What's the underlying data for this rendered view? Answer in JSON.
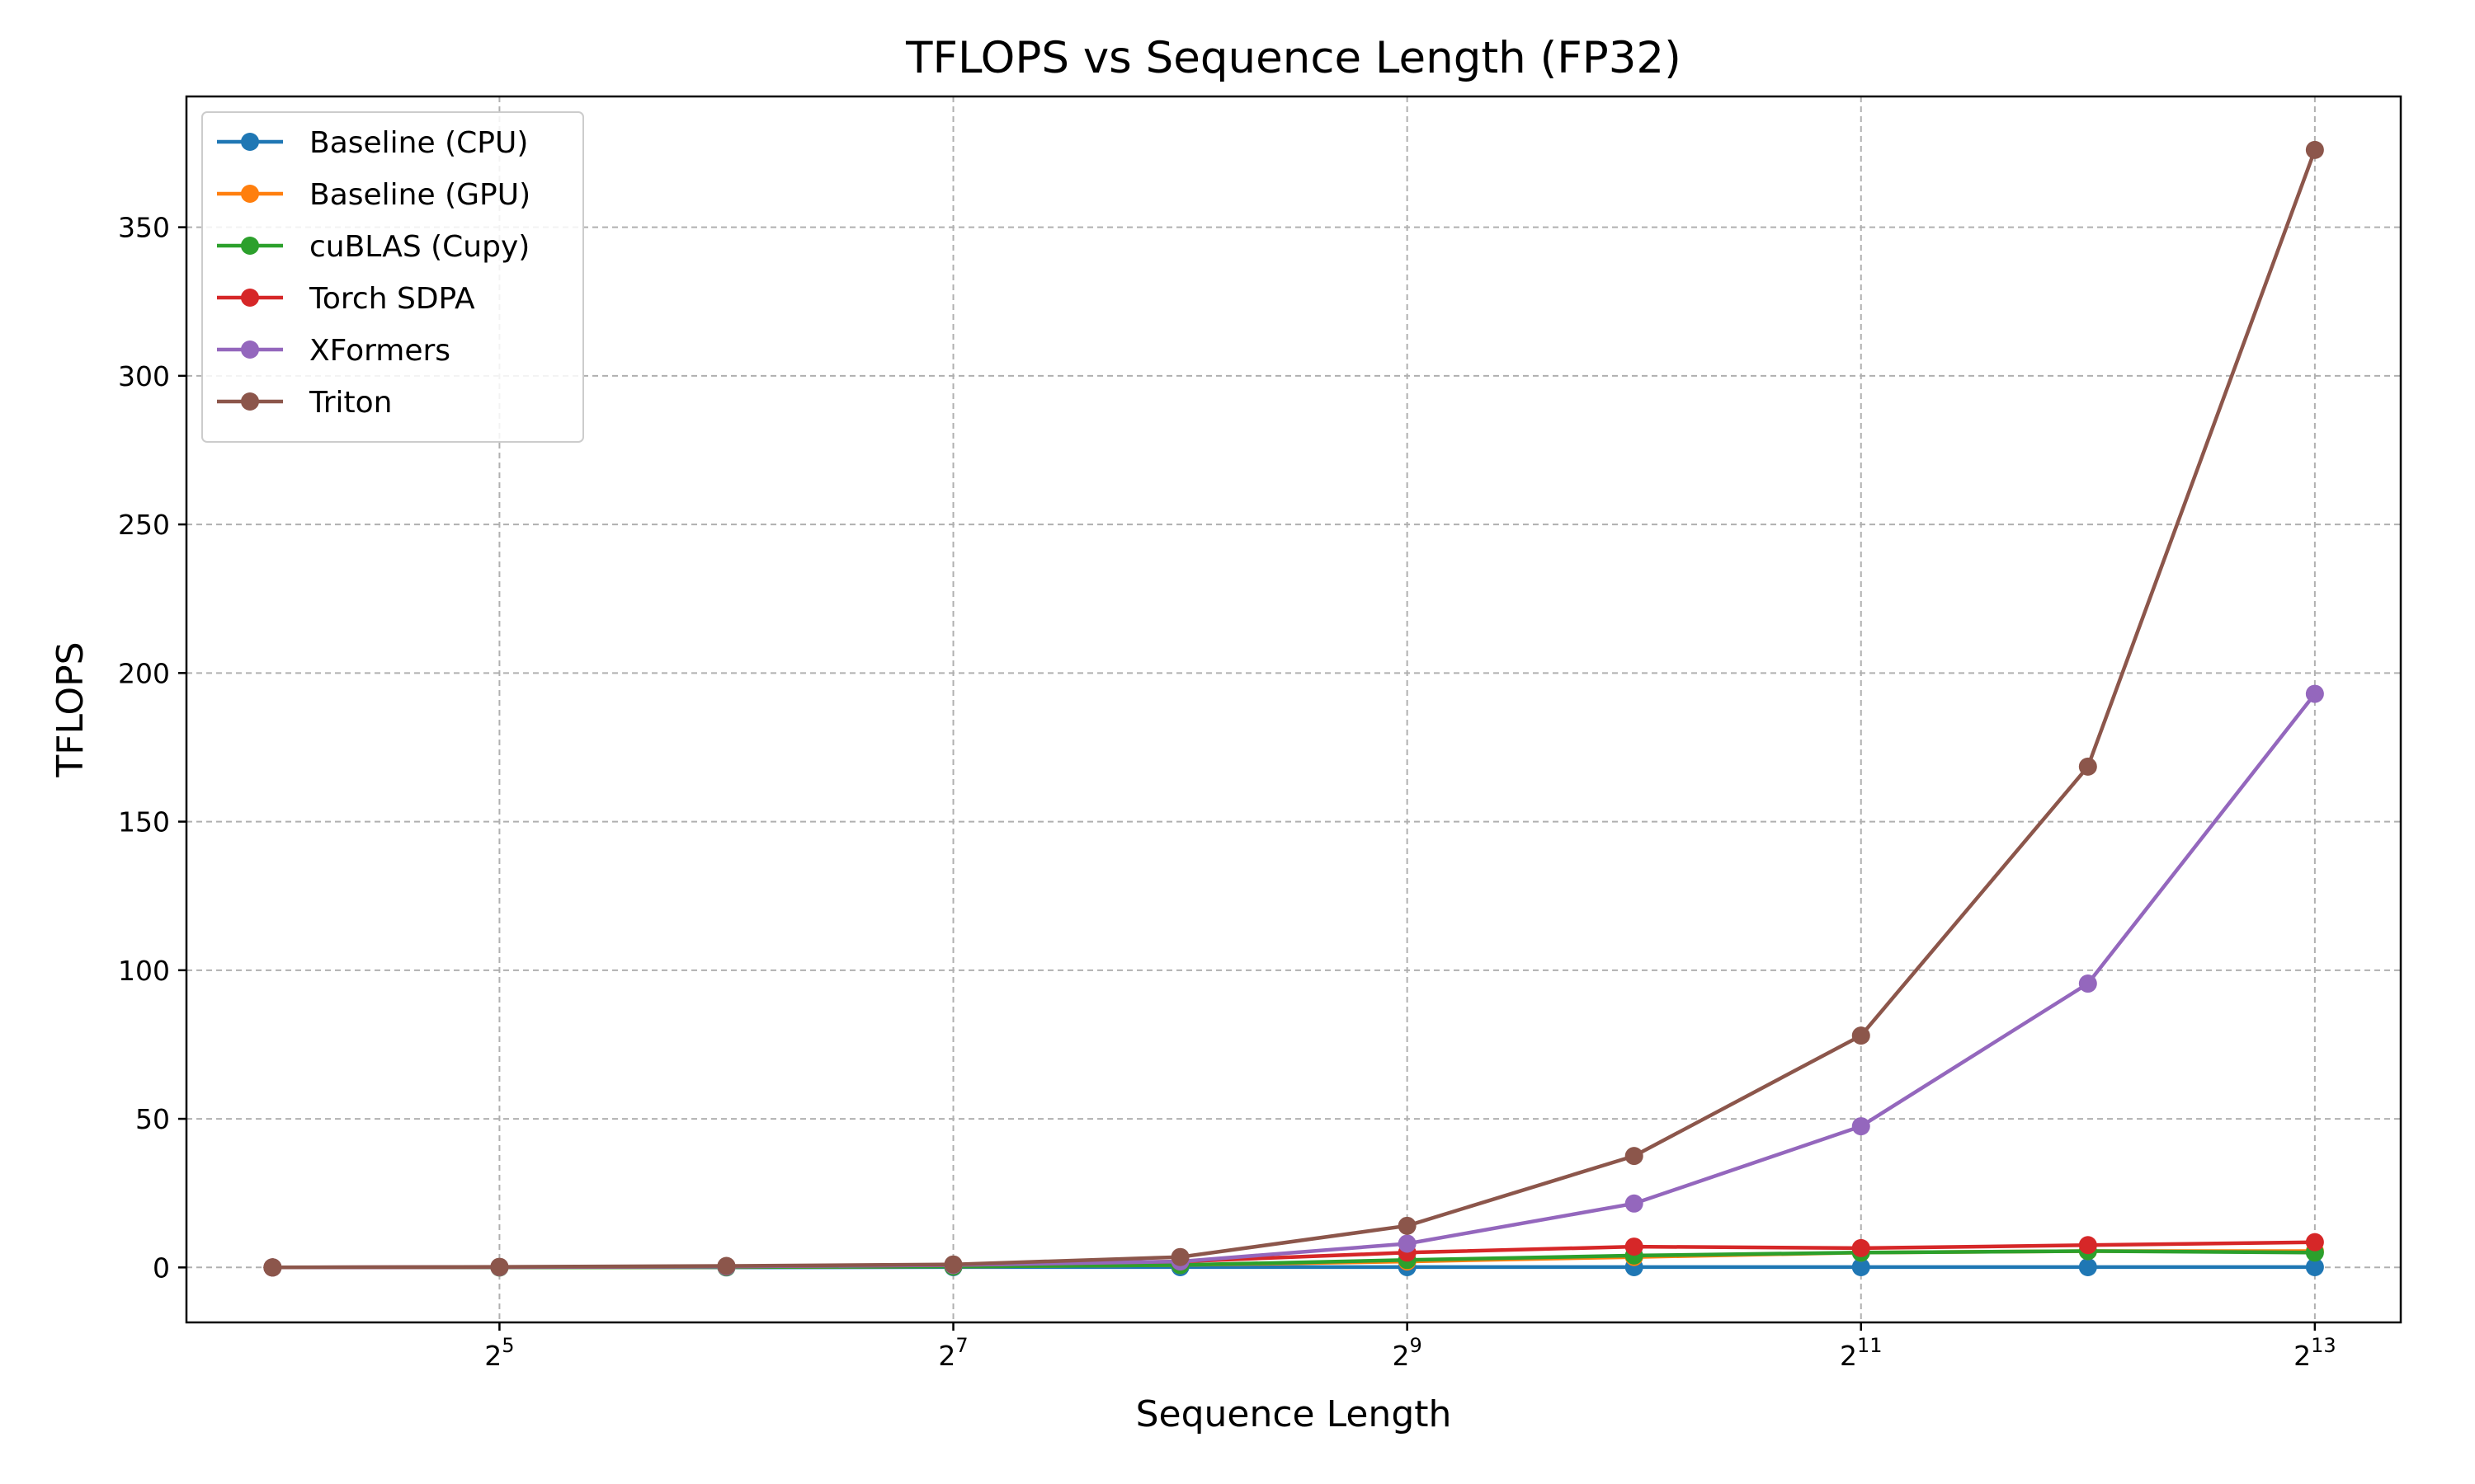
{
  "chart_data": {
    "type": "line",
    "title": "TFLOPS vs Sequence Length (FP32)",
    "xlabel": "Sequence Length",
    "ylabel": "TFLOPS",
    "x_scale": "log2",
    "x": [
      16,
      32,
      64,
      128,
      256,
      512,
      1024,
      2048,
      4096,
      8192
    ],
    "x_ticks": [
      {
        "value": 32,
        "base": "2",
        "exp": "5"
      },
      {
        "value": 128,
        "base": "2",
        "exp": "7"
      },
      {
        "value": 512,
        "base": "2",
        "exp": "9"
      },
      {
        "value": 2048,
        "base": "2",
        "exp": "11"
      },
      {
        "value": 8192,
        "base": "2",
        "exp": "13"
      }
    ],
    "xlim": [
      12.3,
      10650
    ],
    "ylim": [
      -18.5,
      394
    ],
    "y_ticks": [
      0,
      50,
      100,
      150,
      200,
      250,
      300,
      350
    ],
    "grid": true,
    "legend_position": "upper-left",
    "series": [
      {
        "name": "Baseline (CPU)",
        "color": "#1f77b4",
        "values": [
          0.0,
          0.0,
          0.0,
          0.1,
          0.1,
          0.1,
          0.1,
          0.1,
          0.1,
          0.1
        ]
      },
      {
        "name": "Baseline (GPU)",
        "color": "#ff7f0e",
        "values": [
          0.0,
          0.0,
          0.1,
          0.3,
          0.8,
          2.0,
          3.5,
          5.0,
          5.5,
          5.5
        ]
      },
      {
        "name": "cuBLAS (Cupy)",
        "color": "#2ca02c",
        "values": [
          0.0,
          0.0,
          0.1,
          0.3,
          0.8,
          2.5,
          4.0,
          5.0,
          5.5,
          5.0
        ]
      },
      {
        "name": "Torch SDPA",
        "color": "#d62728",
        "values": [
          0.0,
          0.1,
          0.3,
          0.8,
          2.0,
          5.0,
          7.0,
          6.5,
          7.5,
          8.5
        ]
      },
      {
        "name": "XFormers",
        "color": "#9467bd",
        "values": [
          0.0,
          0.1,
          0.3,
          0.8,
          2.0,
          8.0,
          21.5,
          47.5,
          95.5,
          193.0
        ]
      },
      {
        "name": "Triton",
        "color": "#8c564b",
        "values": [
          0.0,
          0.2,
          0.5,
          1.0,
          3.5,
          14.0,
          37.5,
          78.0,
          168.5,
          376.0
        ]
      }
    ]
  }
}
